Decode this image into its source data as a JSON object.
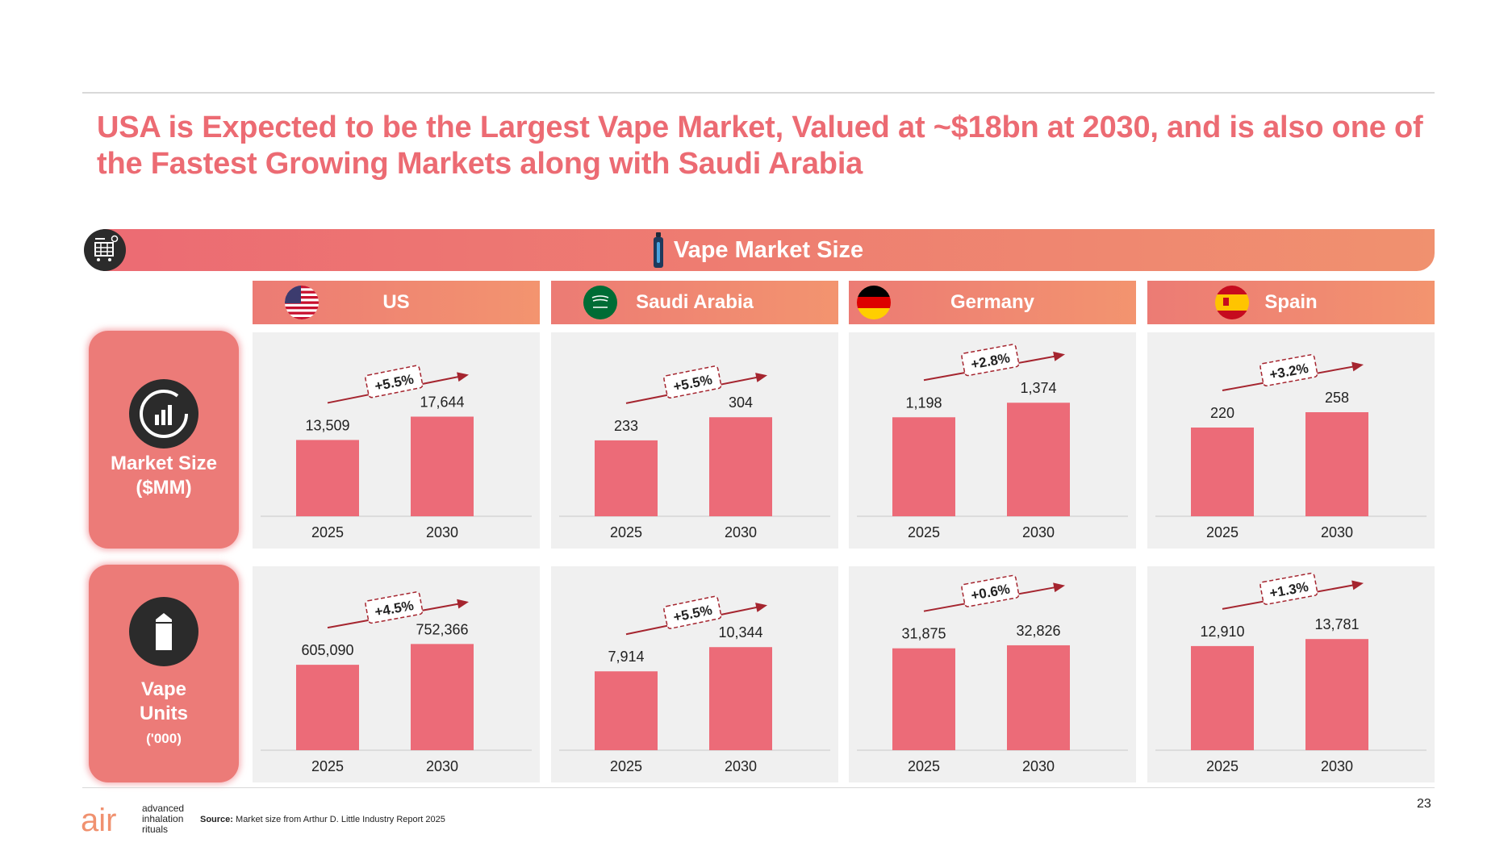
{
  "title": "USA is Expected to be the Largest Vape Market, Valued at ~$18bn at 2030, and is also one of the Fastest Growing Markets along with Saudi Arabia",
  "banner": {
    "title": "Vape Market Size"
  },
  "rows": [
    {
      "label": "Market Size ($MM)",
      "label_line1": "Market Size",
      "label_line2": "($MM)",
      "sub": "",
      "icon": "chart-icon"
    },
    {
      "label": "Vape Units",
      "label_line1": "Vape",
      "label_line2": "Units",
      "sub": "('000)",
      "icon": "vape-box-icon"
    }
  ],
  "countries": [
    {
      "name": "US",
      "flag": "us-flag-icon"
    },
    {
      "name": "Saudi Arabia",
      "flag": "saudi-flag-icon"
    },
    {
      "name": "Germany",
      "flag": "germany-flag-icon"
    },
    {
      "name": "Spain",
      "flag": "spain-flag-icon"
    }
  ],
  "chart_data": [
    {
      "type": "bar",
      "title": "US — Market Size ($MM)",
      "categories": [
        "2025",
        "2030"
      ],
      "values": [
        13509,
        17644
      ],
      "labels": [
        "13,509",
        "17,644"
      ],
      "growth": "+5.5%",
      "ylim": [
        0,
        30000
      ]
    },
    {
      "type": "bar",
      "title": "Saudi Arabia — Market Size ($MM)",
      "categories": [
        "2025",
        "2030"
      ],
      "values": [
        233,
        304
      ],
      "labels": [
        "233",
        "304"
      ],
      "growth": "+5.5%",
      "ylim": [
        0,
        520
      ]
    },
    {
      "type": "bar",
      "title": "Germany — Market Size ($MM)",
      "categories": [
        "2025",
        "2030"
      ],
      "values": [
        1198,
        1374
      ],
      "labels": [
        "1,198",
        "1,374"
      ],
      "growth": "+2.8%",
      "ylim": [
        0,
        2050
      ]
    },
    {
      "type": "bar",
      "title": "Spain — Market Size ($MM)",
      "categories": [
        "2025",
        "2030"
      ],
      "values": [
        220,
        258
      ],
      "labels": [
        "220",
        "258"
      ],
      "growth": "+3.2%",
      "ylim": [
        0,
        420
      ]
    },
    {
      "type": "bar",
      "title": "US — Vape Units ('000)",
      "categories": [
        "2025",
        "2030"
      ],
      "values": [
        605090,
        752366
      ],
      "labels": [
        "605,090",
        "752,366"
      ],
      "growth": "+4.5%",
      "ylim": [
        0,
        1200000
      ]
    },
    {
      "type": "bar",
      "title": "Saudi Arabia — Vape Units ('000)",
      "categories": [
        "2025",
        "2030"
      ],
      "values": [
        7914,
        10344
      ],
      "labels": [
        "7,914",
        "10,344"
      ],
      "growth": "+5.5%",
      "ylim": [
        0,
        17000
      ]
    },
    {
      "type": "bar",
      "title": "Germany — Vape Units ('000)",
      "categories": [
        "2025",
        "2030"
      ],
      "values": [
        31875,
        32826
      ],
      "labels": [
        "31,875",
        "32,826"
      ],
      "growth": "+0.6%",
      "ylim": [
        0,
        53000
      ]
    },
    {
      "type": "bar",
      "title": "Spain — Vape Units ('000)",
      "categories": [
        "2025",
        "2030"
      ],
      "values": [
        12910,
        13781
      ],
      "labels": [
        "12,910",
        "13,781"
      ],
      "growth": "+1.3%",
      "ylim": [
        0,
        21000
      ]
    }
  ],
  "colors": {
    "bar": "#ec6b78",
    "accent": "#ec6b73",
    "arrow": "#a5252f",
    "panel": "#f0f0f0"
  },
  "footer": {
    "page_number": "23",
    "source_label": "Source:",
    "source_text": "Market size from Arthur D. Little Industry Report 2025",
    "logo_text": "air",
    "logo_tagline": [
      "advanced",
      "inhalation",
      "rituals"
    ]
  }
}
